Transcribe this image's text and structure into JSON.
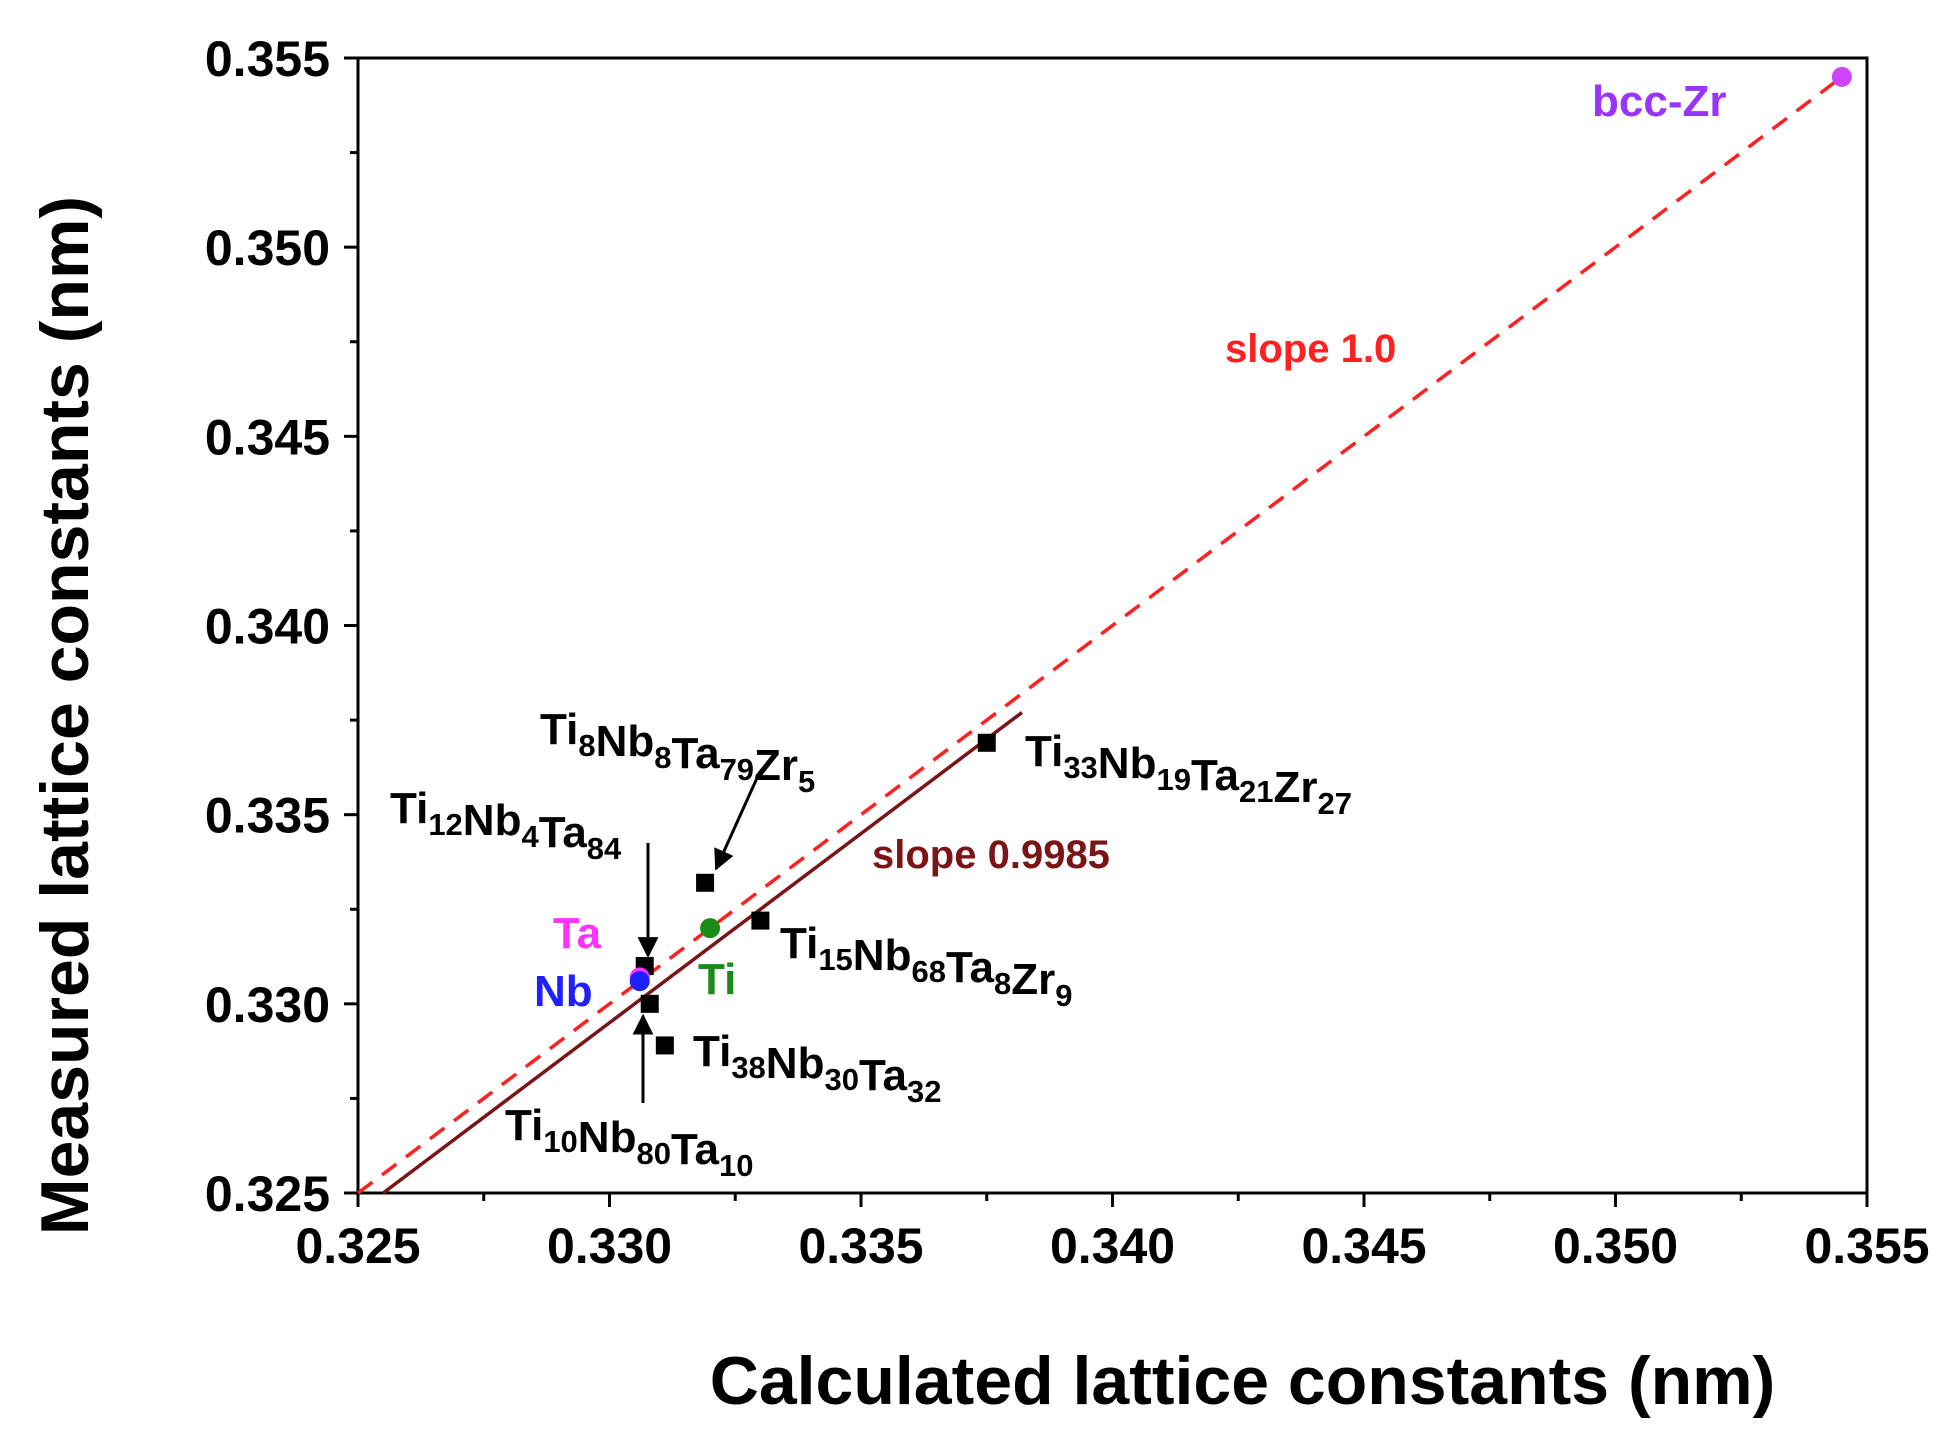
{
  "chart_data": {
    "type": "scatter",
    "xlabel": "Calculated lattice constants (nm)",
    "ylabel": "Measured lattice constants (nm)",
    "xlim": [
      0.325,
      0.355
    ],
    "ylim": [
      0.325,
      0.355
    ],
    "xticks": [
      "0.325",
      "0.330",
      "0.335",
      "0.340",
      "0.345",
      "0.350",
      "0.355"
    ],
    "yticks": [
      "0.325",
      "0.330",
      "0.335",
      "0.340",
      "0.345",
      "0.350",
      "0.355"
    ],
    "colors": {
      "alloy": "#000000",
      "ideal_line": "#ff2020",
      "fit_line": "#7b1416",
      "Ta": "#ff33ff",
      "Nb": "#2020ff",
      "Ti": "#1a8a1a",
      "Zr": "#9933ff",
      "Zr_marker": "#cc44ff"
    },
    "lines": [
      {
        "name": "slope 1.0",
        "slope": 1.0,
        "x": [
          0.325,
          0.3545
        ],
        "y": [
          0.325,
          0.3545
        ],
        "style": "dashed"
      },
      {
        "name": "slope 0.9985",
        "slope": 0.9985,
        "x": [
          0.3255,
          0.3382
        ],
        "y": [
          0.325,
          0.3377
        ],
        "style": "solid"
      }
    ],
    "alloys": [
      {
        "label": "Ti8Nb8Ta79Zr5",
        "parts": [
          [
            "Ti",
            "8"
          ],
          [
            "Nb",
            "8"
          ],
          [
            "Ta",
            "79"
          ],
          [
            "Zr",
            "5"
          ]
        ],
        "x": 0.3319,
        "y": 0.3332
      },
      {
        "label": "Ti33Nb19Ta21Zr27",
        "parts": [
          [
            "Ti",
            "33"
          ],
          [
            "Nb",
            "19"
          ],
          [
            "Ta",
            "21"
          ],
          [
            "Zr",
            "27"
          ]
        ],
        "x": 0.3375,
        "y": 0.3369
      },
      {
        "label": "Ti12Nb4Ta84",
        "parts": [
          [
            "Ti",
            "12"
          ],
          [
            "Nb",
            "4"
          ],
          [
            "Ta",
            "84"
          ]
        ],
        "x": 0.3307,
        "y": 0.331
      },
      {
        "label": "Ti15Nb68Ta8Zr9",
        "parts": [
          [
            "Ti",
            "15"
          ],
          [
            "Nb",
            "68"
          ],
          [
            "Ta",
            "8"
          ],
          [
            "Zr",
            "9"
          ]
        ],
        "x": 0.333,
        "y": 0.3322
      },
      {
        "label": "Ti10Nb80Ta10",
        "parts": [
          [
            "Ti",
            "10"
          ],
          [
            "Nb",
            "80"
          ],
          [
            "Ta",
            "10"
          ]
        ],
        "x": 0.3308,
        "y": 0.33
      },
      {
        "label": "Ti38Nb30Ta32",
        "parts": [
          [
            "Ti",
            "38"
          ],
          [
            "Nb",
            "30"
          ],
          [
            "Ta",
            "32"
          ]
        ],
        "x": 0.3311,
        "y": 0.3289
      }
    ],
    "elements": [
      {
        "label": "Ta",
        "x": 0.3306,
        "y": 0.3307
      },
      {
        "label": "Nb",
        "x": 0.3306,
        "y": 0.3306
      },
      {
        "label": "Ti",
        "x": 0.332,
        "y": 0.332
      },
      {
        "label": "bcc-Zr",
        "x": 0.3545,
        "y": 0.3545
      }
    ]
  }
}
